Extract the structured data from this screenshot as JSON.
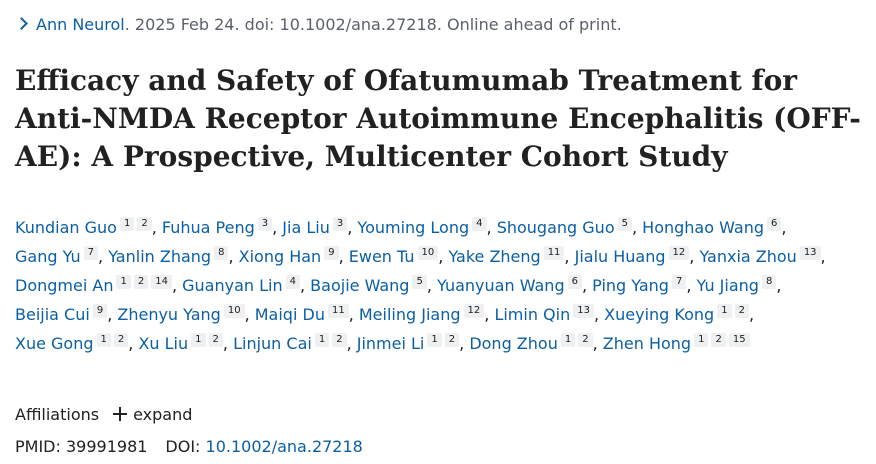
{
  "citation": {
    "journal": "Ann Neurol",
    "details": ". 2025 Feb 24. doi: 10.1002/ana.27218. Online ahead of print."
  },
  "title": "Efficacy and Safety of Ofatumumab Treatment for Anti-NMDA Receptor Autoimmune Encephalitis (OFF-AE): A Prospective, Multicenter Cohort Study",
  "authors": [
    {
      "name": "Kundian Guo",
      "affs": [
        "1",
        "2"
      ]
    },
    {
      "name": "Fuhua Peng",
      "affs": [
        "3"
      ]
    },
    {
      "name": "Jia Liu",
      "affs": [
        "3"
      ]
    },
    {
      "name": "Youming Long",
      "affs": [
        "4"
      ]
    },
    {
      "name": "Shougang Guo",
      "affs": [
        "5"
      ]
    },
    {
      "name": "Honghao Wang",
      "affs": [
        "6"
      ]
    },
    {
      "name": "Gang Yu",
      "affs": [
        "7"
      ]
    },
    {
      "name": "Yanlin Zhang",
      "affs": [
        "8"
      ]
    },
    {
      "name": "Xiong Han",
      "affs": [
        "9"
      ]
    },
    {
      "name": "Ewen Tu",
      "affs": [
        "10"
      ]
    },
    {
      "name": "Yake Zheng",
      "affs": [
        "11"
      ]
    },
    {
      "name": "Jialu Huang",
      "affs": [
        "12"
      ]
    },
    {
      "name": "Yanxia Zhou",
      "affs": [
        "13"
      ]
    },
    {
      "name": "Dongmei An",
      "affs": [
        "1",
        "2",
        "14"
      ]
    },
    {
      "name": "Guanyan Lin",
      "affs": [
        "4"
      ]
    },
    {
      "name": "Baojie Wang",
      "affs": [
        "5"
      ]
    },
    {
      "name": "Yuanyuan Wang",
      "affs": [
        "6"
      ]
    },
    {
      "name": "Ping Yang",
      "affs": [
        "7"
      ]
    },
    {
      "name": "Yu Jiang",
      "affs": [
        "8"
      ]
    },
    {
      "name": "Beijia Cui",
      "affs": [
        "9"
      ]
    },
    {
      "name": "Zhenyu Yang",
      "affs": [
        "10"
      ]
    },
    {
      "name": "Maiqi Du",
      "affs": [
        "11"
      ]
    },
    {
      "name": "Meiling Jiang",
      "affs": [
        "12"
      ]
    },
    {
      "name": "Limin Qin",
      "affs": [
        "13"
      ]
    },
    {
      "name": "Xueying Kong",
      "affs": [
        "1",
        "2"
      ]
    },
    {
      "name": "Xue Gong",
      "affs": [
        "1",
        "2"
      ]
    },
    {
      "name": "Xu Liu",
      "affs": [
        "1",
        "2"
      ]
    },
    {
      "name": "Linjun Cai",
      "affs": [
        "1",
        "2"
      ]
    },
    {
      "name": "Jinmei Li",
      "affs": [
        "1",
        "2"
      ]
    },
    {
      "name": "Dong Zhou",
      "affs": [
        "1",
        "2"
      ]
    },
    {
      "name": "Zhen Hong",
      "affs": [
        "1",
        "2",
        "15"
      ]
    }
  ],
  "affiliations": {
    "label": "Affiliations",
    "expand_label": "expand",
    "expand_icon": "plus-icon"
  },
  "identifiers": {
    "pmid_label": "PMID:",
    "pmid": "39991981",
    "doi_label": "DOI:",
    "doi": "10.1002/ana.27218"
  },
  "colors": {
    "link": "#0b5fa5",
    "text": "#212121",
    "muted": "#5b616b",
    "aff_badge_bg": "#eef0f2"
  }
}
